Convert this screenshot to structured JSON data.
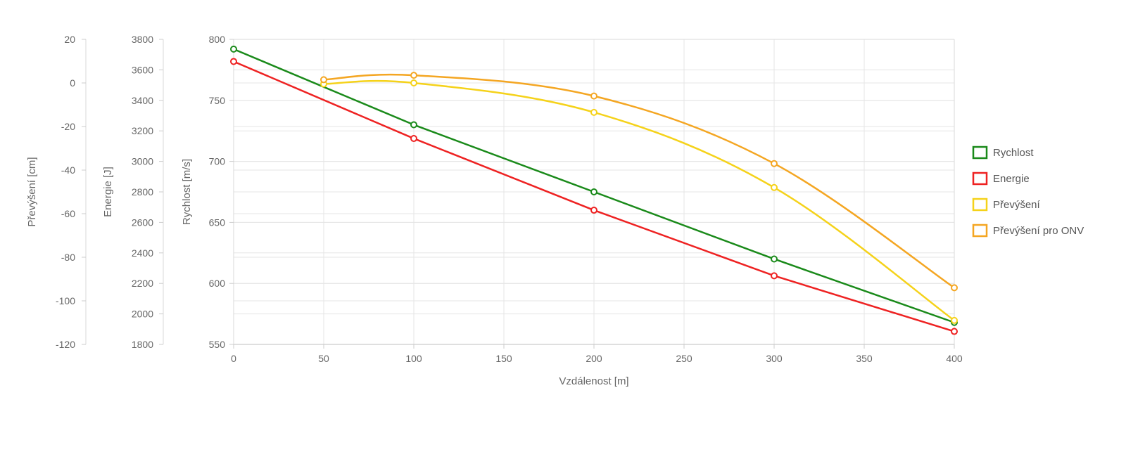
{
  "chart_data": {
    "type": "line",
    "x_axis": {
      "label": "Vzdálenost [m]",
      "range": [
        0,
        400
      ],
      "ticks": [
        0,
        50,
        100,
        150,
        200,
        250,
        300,
        350,
        400
      ],
      "grid": true
    },
    "y_axes": [
      {
        "id": "speed",
        "label": "Rychlost [m/s]",
        "range": [
          550,
          800
        ],
        "ticks": [
          550,
          600,
          650,
          700,
          750,
          800
        ],
        "grid": true
      },
      {
        "id": "energy",
        "label": "Energie [J]",
        "range": [
          1800,
          3800
        ],
        "ticks": [
          1800,
          2000,
          2200,
          2400,
          2600,
          2800,
          3000,
          3200,
          3400,
          3600,
          3800
        ],
        "grid": true
      },
      {
        "id": "drop",
        "label": "Převýšení [cm]",
        "range": [
          -120,
          20
        ],
        "ticks": [
          -120,
          -100,
          -80,
          -60,
          -40,
          -20,
          0,
          20
        ],
        "grid": true
      }
    ],
    "series": [
      {
        "name": "Rychlost",
        "axis": "speed",
        "color": "#1a8a1a",
        "smooth": false,
        "points": [
          [
            0,
            792
          ],
          [
            100,
            730
          ],
          [
            200,
            675
          ],
          [
            300,
            620
          ],
          [
            400,
            568
          ]
        ]
      },
      {
        "name": "Energie",
        "axis": "energy",
        "color": "#ee2222",
        "smooth": false,
        "points": [
          [
            0,
            3655
          ],
          [
            100,
            3150
          ],
          [
            200,
            2680
          ],
          [
            300,
            2250
          ],
          [
            400,
            1885
          ]
        ]
      },
      {
        "name": "Převýšení",
        "axis": "drop",
        "color": "#f5d21a",
        "smooth": true,
        "points": [
          [
            50,
            -0.5
          ],
          [
            100,
            0
          ],
          [
            200,
            -13.5
          ],
          [
            300,
            -48
          ],
          [
            400,
            -109
          ]
        ]
      },
      {
        "name": "Převýšení pro ONV",
        "axis": "drop",
        "color": "#f4a622",
        "smooth": true,
        "points": [
          [
            50,
            1.5
          ],
          [
            100,
            3.5
          ],
          [
            200,
            -6
          ],
          [
            300,
            -37
          ],
          [
            400,
            -94
          ]
        ]
      }
    ],
    "legend": {
      "position": "right"
    }
  }
}
